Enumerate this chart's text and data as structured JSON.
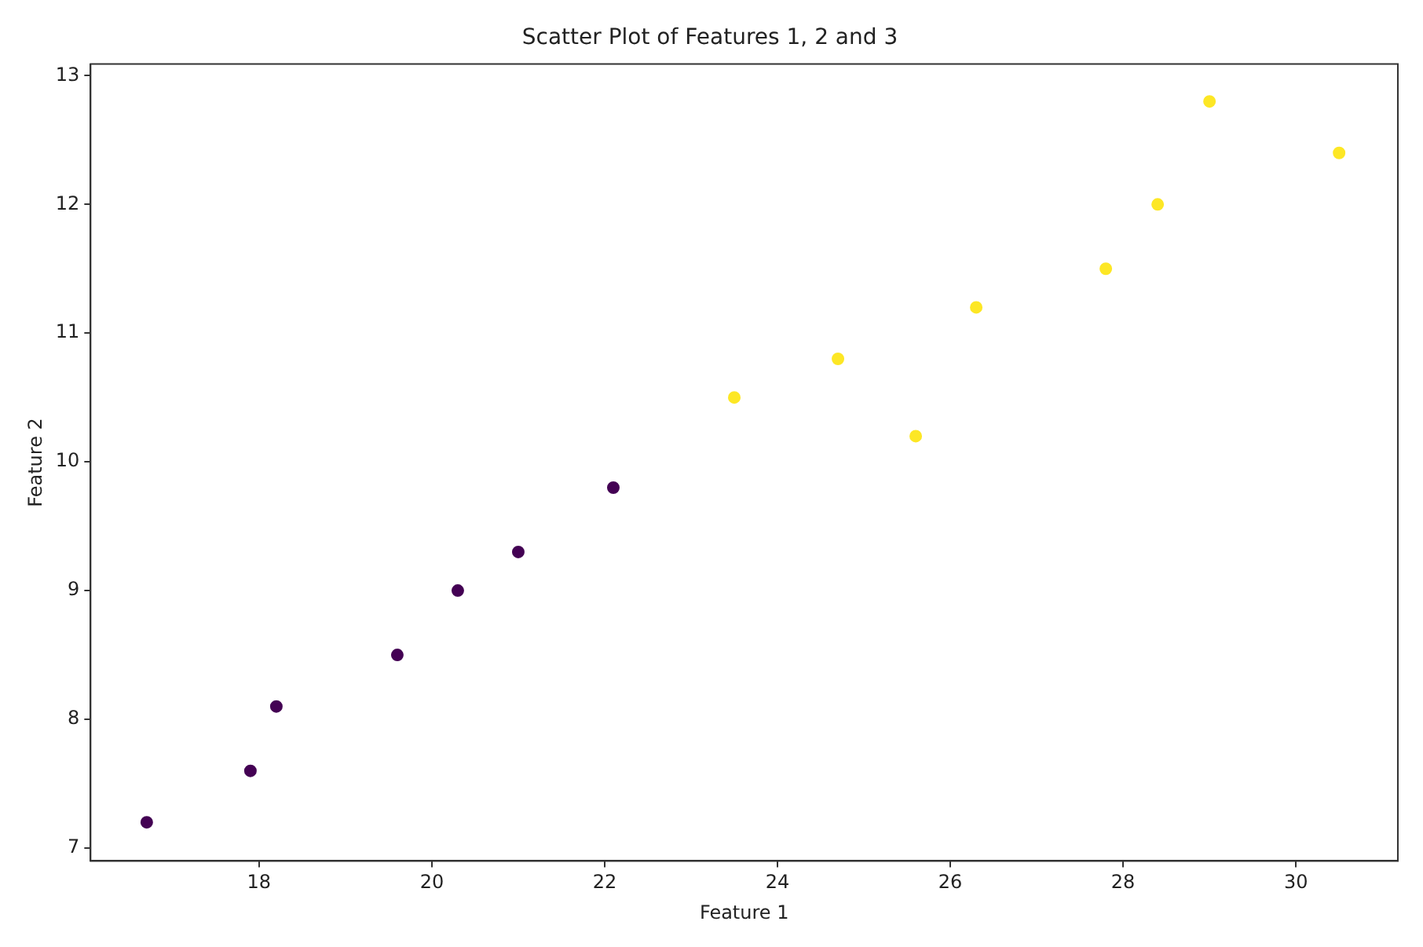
{
  "chart_data": {
    "type": "scatter",
    "title": "Scatter Plot of Features 1, 2 and 3",
    "xlabel": "Feature 1",
    "ylabel": "Feature 2",
    "series": [
      {
        "color": "#440154",
        "x": [
          16.7,
          17.9,
          18.2,
          19.6,
          20.3,
          21.0,
          22.1
        ],
        "values": [
          7.2,
          7.6,
          8.1,
          8.5,
          9.0,
          9.3,
          9.8
        ]
      },
      {
        "color": "#fde725",
        "x": [
          23.5,
          24.7,
          25.6,
          26.3,
          27.8,
          28.4,
          29.0,
          30.5
        ],
        "values": [
          10.5,
          10.8,
          10.2,
          11.2,
          11.5,
          12.0,
          12.8,
          12.4
        ]
      }
    ],
    "xlim": [
      16.05,
      31.18
    ],
    "xticks": [
      18,
      20,
      22,
      24,
      26,
      28,
      30
    ],
    "ylim": [
      6.9,
      13.09
    ],
    "yticks": [
      7,
      8,
      9,
      10,
      11,
      12,
      13
    ],
    "grid": false,
    "legend": false,
    "marker": "circle"
  }
}
